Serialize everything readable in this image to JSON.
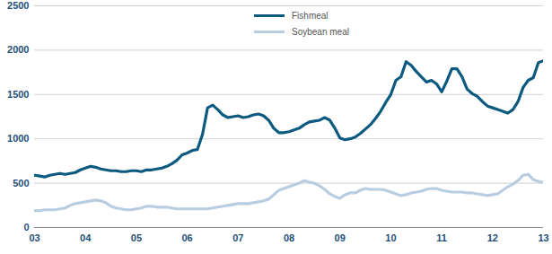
{
  "chart_data": {
    "type": "line",
    "x": [
      2003.0,
      2003.1,
      2003.2,
      2003.3,
      2003.4,
      2003.5,
      2003.6,
      2003.7,
      2003.8,
      2003.9,
      2004.0,
      2004.1,
      2004.2,
      2004.3,
      2004.4,
      2004.5,
      2004.6,
      2004.7,
      2004.8,
      2004.9,
      2005.0,
      2005.1,
      2005.2,
      2005.3,
      2005.4,
      2005.5,
      2005.6,
      2005.7,
      2005.8,
      2005.9,
      2006.0,
      2006.1,
      2006.2,
      2006.3,
      2006.4,
      2006.5,
      2006.6,
      2006.7,
      2006.8,
      2006.9,
      2007.0,
      2007.1,
      2007.2,
      2007.3,
      2007.4,
      2007.5,
      2007.6,
      2007.7,
      2007.8,
      2007.9,
      2008.0,
      2008.1,
      2008.2,
      2008.3,
      2008.4,
      2008.5,
      2008.6,
      2008.7,
      2008.8,
      2008.9,
      2009.0,
      2009.1,
      2009.2,
      2009.3,
      2009.4,
      2009.5,
      2009.6,
      2009.7,
      2009.8,
      2009.9,
      2010.0,
      2010.1,
      2010.2,
      2010.3,
      2010.4,
      2010.5,
      2010.6,
      2010.7,
      2010.8,
      2010.9,
      2011.0,
      2011.1,
      2011.2,
      2011.3,
      2011.4,
      2011.5,
      2011.6,
      2011.7,
      2011.8,
      2011.9,
      2012.0,
      2012.1,
      2012.2,
      2012.3,
      2012.4,
      2012.5,
      2012.6,
      2012.7,
      2012.8,
      2012.9,
      2013.0
    ],
    "series": [
      {
        "name": "Fishmeal",
        "color": "#0d5a80",
        "values": [
          590,
          580,
          570,
          590,
          600,
          610,
          600,
          610,
          620,
          650,
          670,
          690,
          680,
          660,
          650,
          640,
          640,
          630,
          630,
          640,
          640,
          630,
          650,
          650,
          660,
          670,
          690,
          720,
          760,
          820,
          840,
          870,
          880,
          1050,
          1350,
          1380,
          1330,
          1270,
          1240,
          1250,
          1260,
          1240,
          1250,
          1270,
          1280,
          1260,
          1210,
          1120,
          1070,
          1070,
          1080,
          1100,
          1120,
          1160,
          1190,
          1200,
          1210,
          1240,
          1210,
          1120,
          1010,
          990,
          1000,
          1020,
          1060,
          1110,
          1160,
          1230,
          1310,
          1410,
          1500,
          1660,
          1700,
          1870,
          1830,
          1760,
          1700,
          1640,
          1660,
          1620,
          1530,
          1650,
          1790,
          1790,
          1700,
          1560,
          1510,
          1480,
          1420,
          1370,
          1350,
          1330,
          1310,
          1290,
          1330,
          1420,
          1580,
          1660,
          1690,
          1860,
          1880
        ]
      },
      {
        "name": "Soybean meal",
        "color": "#b9cde0",
        "values": [
          190,
          190,
          200,
          200,
          200,
          210,
          220,
          250,
          270,
          280,
          290,
          300,
          310,
          300,
          280,
          240,
          220,
          210,
          200,
          200,
          210,
          220,
          240,
          240,
          230,
          230,
          230,
          220,
          210,
          210,
          210,
          210,
          210,
          210,
          210,
          220,
          230,
          240,
          250,
          260,
          270,
          270,
          270,
          280,
          290,
          300,
          320,
          370,
          420,
          440,
          460,
          480,
          500,
          530,
          510,
          500,
          470,
          430,
          380,
          350,
          330,
          370,
          390,
          390,
          420,
          440,
          430,
          430,
          430,
          420,
          400,
          380,
          360,
          370,
          390,
          400,
          410,
          430,
          440,
          440,
          420,
          410,
          400,
          400,
          400,
          390,
          390,
          380,
          370,
          360,
          370,
          380,
          420,
          460,
          490,
          530,
          590,
          600,
          540,
          520,
          510
        ]
      }
    ],
    "xlim": [
      2003,
      2013
    ],
    "xticks": [
      {
        "value": 2003,
        "label": "03"
      },
      {
        "value": 2004,
        "label": "04"
      },
      {
        "value": 2005,
        "label": "05"
      },
      {
        "value": 2006,
        "label": "06"
      },
      {
        "value": 2007,
        "label": "07"
      },
      {
        "value": 2008,
        "label": "08"
      },
      {
        "value": 2009,
        "label": "09"
      },
      {
        "value": 2010,
        "label": "10"
      },
      {
        "value": 2011,
        "label": "11"
      },
      {
        "value": 2012,
        "label": "12"
      },
      {
        "value": 2013,
        "label": "13"
      }
    ],
    "ylim": [
      0,
      2500
    ],
    "yticks": [
      0,
      500,
      1000,
      1500,
      2000,
      2500
    ],
    "grid": true,
    "legend": "top"
  }
}
